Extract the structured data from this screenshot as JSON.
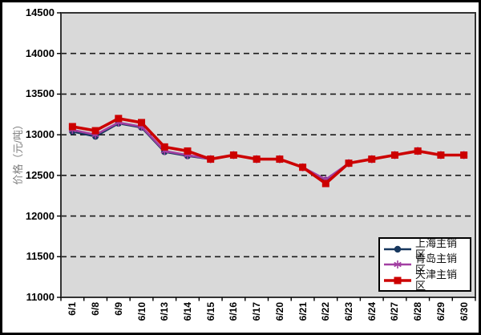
{
  "chart_data": {
    "type": "line",
    "title": "",
    "xlabel": "",
    "ylabel": "价格（元/吨）",
    "ylim": [
      11000,
      14500
    ],
    "y_ticks": [
      14500,
      14000,
      13500,
      13000,
      12500,
      12000,
      11500,
      11000
    ],
    "grid": "horizontal-dashed",
    "plot_bg_color": "#d9d9d9",
    "legend_position": "inside-bottom-right",
    "categories": [
      "6/1",
      "6/8",
      "6/9",
      "6/10",
      "6/13",
      "6/14",
      "6/15",
      "6/16",
      "6/17",
      "6/20",
      "6/21",
      "6/22",
      "6/23",
      "6/24",
      "6/27",
      "6/28",
      "6/29",
      "6/30"
    ],
    "series": [
      {
        "name": "上海主销区",
        "color": "#17375E",
        "marker": "circle",
        "values": [
          13040,
          12980,
          13140,
          13090,
          12790,
          12740,
          12700,
          12750,
          12700,
          12700,
          12600,
          12440,
          12650,
          12700,
          12750,
          12800,
          12750,
          12750
        ]
      },
      {
        "name": "青岛主销区",
        "color": "#A23FA2",
        "marker": "asterisk",
        "values": [
          13060,
          13000,
          13150,
          13100,
          12800,
          12750,
          12700,
          12750,
          12700,
          12700,
          12600,
          12450,
          12650,
          12700,
          12750,
          12800,
          12750,
          12750
        ]
      },
      {
        "name": "天津主销区",
        "color": "#CC0000",
        "marker": "square",
        "values": [
          13100,
          13050,
          13200,
          13150,
          12850,
          12800,
          12700,
          12750,
          12700,
          12700,
          12600,
          12400,
          12650,
          12700,
          12750,
          12800,
          12750,
          12750
        ]
      }
    ]
  }
}
